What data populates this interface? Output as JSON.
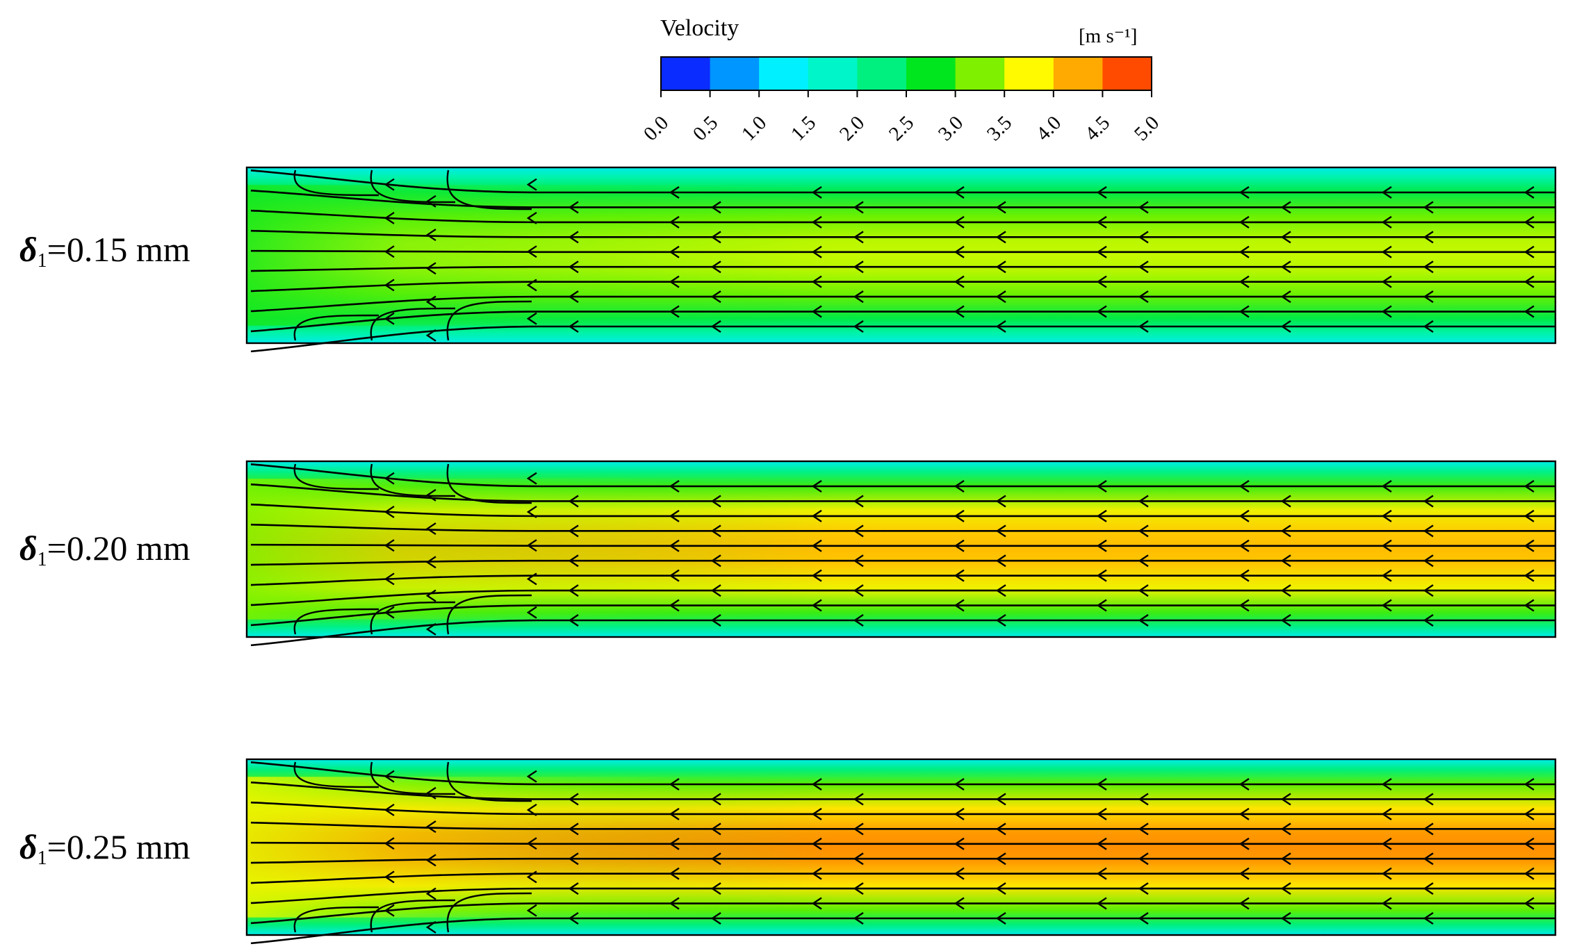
{
  "chart_data": {
    "type": "heatmap",
    "description_kind": "CFD velocity contour with streamlines",
    "colorbar": {
      "title": "Velocity",
      "unit": "[m s⁻¹]",
      "ticks": [
        "0.0",
        "0.5",
        "1.0",
        "1.5",
        "2.0",
        "2.5",
        "3.0",
        "3.5",
        "4.0",
        "4.5",
        "5.0"
      ],
      "range": [
        0.0,
        5.0
      ],
      "colors": [
        "#0a2cff",
        "#0096ff",
        "#00f0ff",
        "#00f5c8",
        "#00f080",
        "#00e61e",
        "#7ff000",
        "#fffa00",
        "#ffaa00",
        "#ff4b00"
      ]
    },
    "panels": [
      {
        "label_symbol": "δ",
        "label_sub": "1",
        "label_value": "=0.15 mm",
        "core_velocity": 3.4,
        "wall_velocity": 1.2,
        "flow_direction": "right-to-left"
      },
      {
        "label_symbol": "δ",
        "label_sub": "1",
        "label_value": "=0.20 mm",
        "core_velocity": 4.3,
        "wall_velocity": 1.2,
        "flow_direction": "right-to-left"
      },
      {
        "label_symbol": "δ",
        "label_sub": "1",
        "label_value": "=0.25 mm",
        "core_velocity": 4.6,
        "wall_velocity": 1.2,
        "flow_direction": "right-to-left"
      }
    ]
  }
}
